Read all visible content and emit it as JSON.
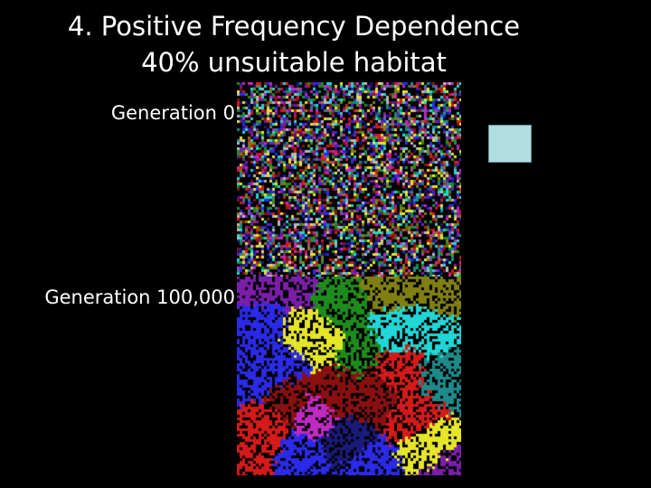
{
  "slide": {
    "title_line1": "4. Positive Frequency Dependence",
    "title_line2": "40% unsuitable habitat",
    "label_gen0": "Generation 0",
    "label_gen100k": "Generation 100,000"
  },
  "simulation": {
    "unsuitable_fraction": 0.4,
    "generations_shown": [
      "Generation 0",
      "Generation 100,000"
    ],
    "type_colors": [
      "#e5e52a",
      "#2a2ae8",
      "#d41a1a",
      "#1d8c1d",
      "#7a1ea8",
      "#20d6d6",
      "#7f7f12",
      "#b8b8b8",
      "#c02ac0",
      "#1e8a8a",
      "#8a1010",
      "#1a1a7a"
    ],
    "unsuitable_color": "#000000",
    "swatch_color": "#b0dde0"
  }
}
